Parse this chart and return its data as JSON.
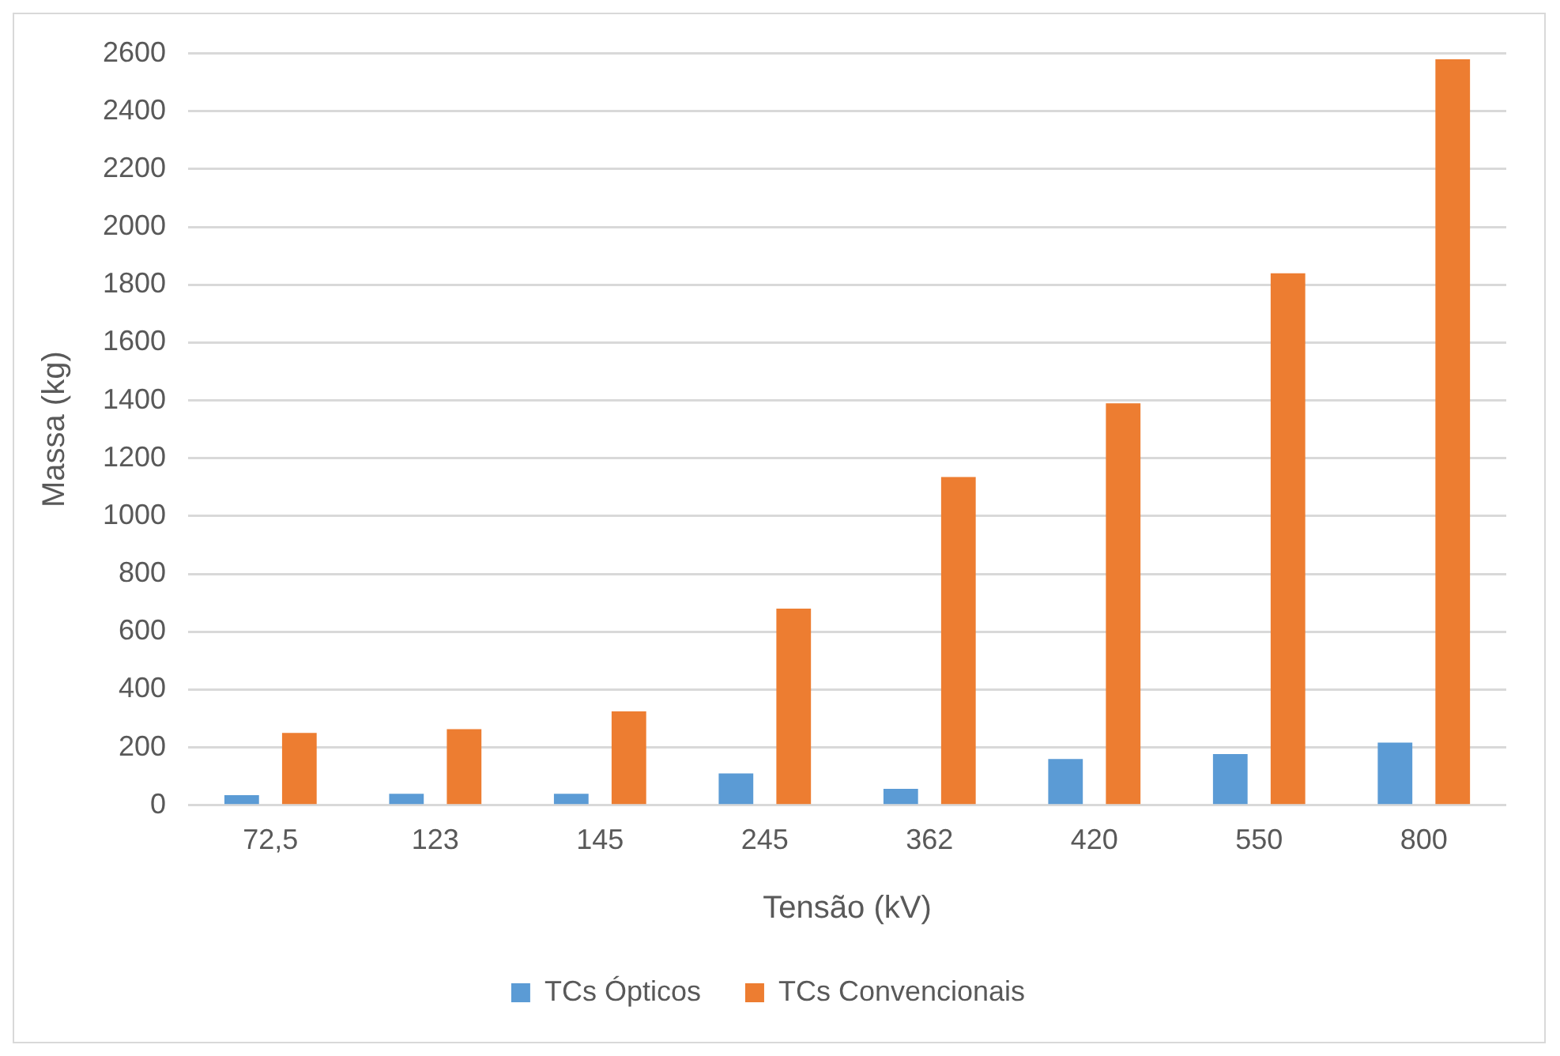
{
  "chart_data": {
    "type": "bar",
    "xlabel": "Tensão (kV)",
    "ylabel": "Massa (kg)",
    "categories": [
      "72,5",
      "123",
      "145",
      "245",
      "362",
      "420",
      "550",
      "800"
    ],
    "series": [
      {
        "name": "TCs Ópticos",
        "color": "#5b9bd5",
        "values": [
          35,
          40,
          40,
          110,
          57,
          160,
          177,
          217
        ]
      },
      {
        "name": "TCs Convencionais",
        "color": "#ed7d31",
        "values": [
          250,
          263,
          325,
          680,
          1135,
          1390,
          1840,
          2580
        ]
      }
    ],
    "ylim": [
      0,
      2600
    ],
    "yticks": [
      0,
      200,
      400,
      600,
      800,
      1000,
      1200,
      1400,
      1600,
      1800,
      2000,
      2200,
      2400,
      2600
    ],
    "grid": "y",
    "legend": "bottom"
  }
}
